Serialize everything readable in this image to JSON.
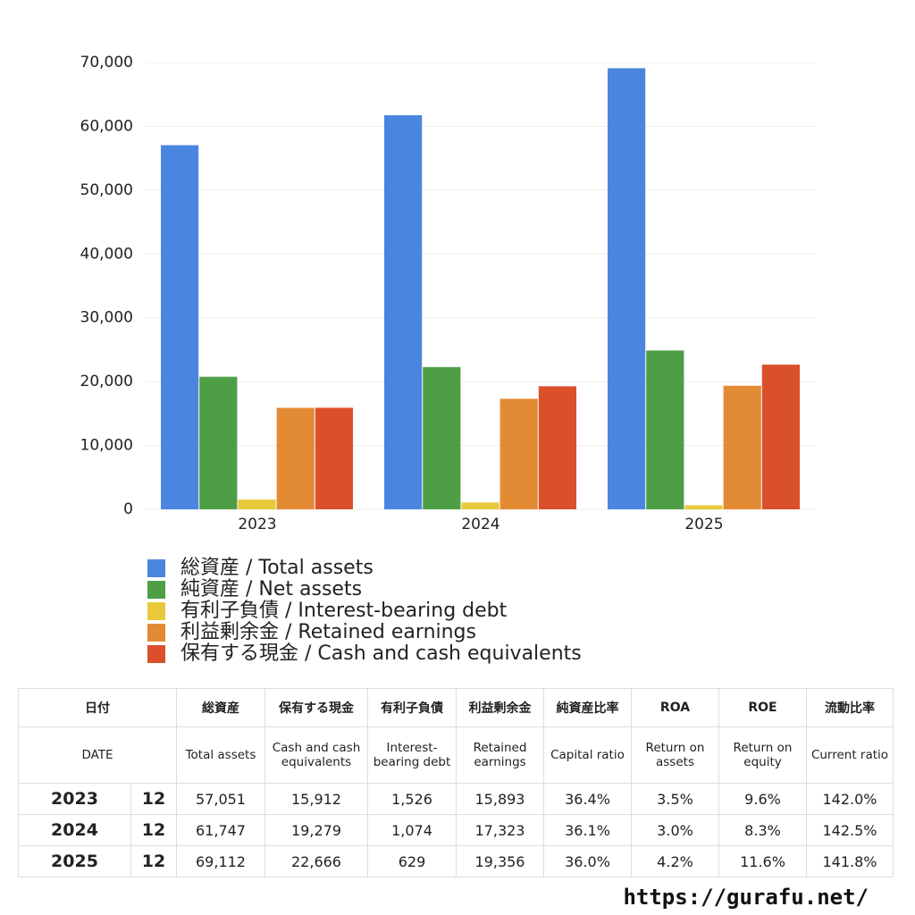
{
  "chart_data": {
    "type": "bar",
    "categories": [
      "2023",
      "2024",
      "2025"
    ],
    "series": [
      {
        "name": "総資産 / Total assets",
        "color": "#4a86e0",
        "values": [
          57051,
          61747,
          69112
        ]
      },
      {
        "name": "純資産 / Net assets",
        "color": "#4e9e45",
        "values": [
          20767,
          22291,
          24880
        ]
      },
      {
        "name": "有利子負債 / Interest-bearing debt",
        "color": "#e8c93a",
        "values": [
          1526,
          1074,
          629
        ]
      },
      {
        "name": "利益剰余金 / Retained earnings",
        "color": "#e38a35",
        "values": [
          15893,
          17323,
          19356
        ]
      },
      {
        "name": "保有する現金 /  Cash and cash equivalents",
        "color": "#d9502b",
        "values": [
          15912,
          19279,
          22666
        ]
      }
    ],
    "ylim": [
      0,
      70000
    ],
    "yticks": [
      0,
      {
        "value": 10000,
        "label": "10,000"
      },
      {
        "value": 20000,
        "label": "20,000"
      },
      {
        "value": 30000,
        "label": "30,000"
      },
      {
        "value": 40000,
        "label": "40,000"
      },
      {
        "value": 50000,
        "label": "50,000"
      },
      {
        "value": 60000,
        "label": "60,000"
      },
      {
        "value": 70000,
        "label": "70,000"
      }
    ],
    "grid": true
  },
  "table": {
    "header": [
      [
        "日付",
        "総資産",
        "保有する現金",
        "有利子負債",
        "利益剰余金",
        "純資産比率",
        "ROA",
        "ROE",
        "流動比率"
      ],
      [
        "DATE",
        "Total assets",
        "Cash and cash equivalents",
        "Interest-bearing debt",
        "Retained earnings",
        "Capital ratio",
        "Return on assets",
        "Return on equity",
        "Current ratio"
      ]
    ],
    "rows": [
      [
        "2023",
        "12",
        "57,051",
        "15,912",
        "1,526",
        "15,893",
        "36.4%",
        "3.5%",
        "9.6%",
        "142.0%"
      ],
      [
        "2024",
        "12",
        "61,747",
        "19,279",
        "1,074",
        "17,323",
        "36.1%",
        "3.0%",
        "8.3%",
        "142.5%"
      ],
      [
        "2025",
        "12",
        "69,112",
        "22,666",
        "629",
        "19,356",
        "36.0%",
        "4.2%",
        "11.6%",
        "141.8%"
      ]
    ]
  },
  "footer": "https://gurafu.net/"
}
